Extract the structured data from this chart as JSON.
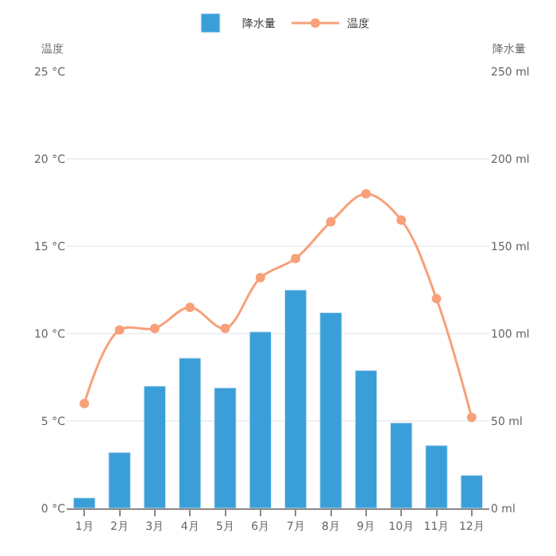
{
  "chart_data": {
    "type": "bar",
    "categories": [
      "1月",
      "2月",
      "3月",
      "4月",
      "5月",
      "6月",
      "7月",
      "8月",
      "9月",
      "10月",
      "11月",
      "12月"
    ],
    "series": [
      {
        "name": "降水量",
        "axis": "y2",
        "color": "#3a9fd8",
        "values": [
          6,
          32,
          70,
          86,
          69,
          101,
          125,
          112,
          79,
          49,
          36,
          19
        ]
      },
      {
        "name": "温度",
        "type": "line",
        "axis": "y",
        "color": "#f7a07a",
        "marker": "circle",
        "values": [
          6.0,
          10.2,
          10.3,
          11.5,
          10.3,
          13.2,
          14.3,
          16.4,
          18.0,
          16.5,
          12.0,
          5.2
        ]
      }
    ],
    "ylabel": "温度",
    "y2label": "降水量",
    "ylim": [
      0,
      25
    ],
    "yticks": [
      {
        "value": 0,
        "label": "0 °C"
      },
      {
        "value": 5,
        "label": "5 °C"
      },
      {
        "value": 10,
        "label": "10 °C"
      },
      {
        "value": 15,
        "label": "15 °C"
      },
      {
        "value": 20,
        "label": "20 °C"
      },
      {
        "value": 25,
        "label": "25 °C"
      }
    ],
    "y2lim": [
      0,
      250
    ],
    "y2ticks": [
      {
        "value": 0,
        "label": "0 ml"
      },
      {
        "value": 50,
        "label": "50 ml"
      },
      {
        "value": 100,
        "label": "100 ml"
      },
      {
        "value": 150,
        "label": "150 ml"
      },
      {
        "value": 200,
        "label": "200 ml"
      },
      {
        "value": 250,
        "label": "250 ml"
      }
    ],
    "grid": "y",
    "legend": "top"
  }
}
